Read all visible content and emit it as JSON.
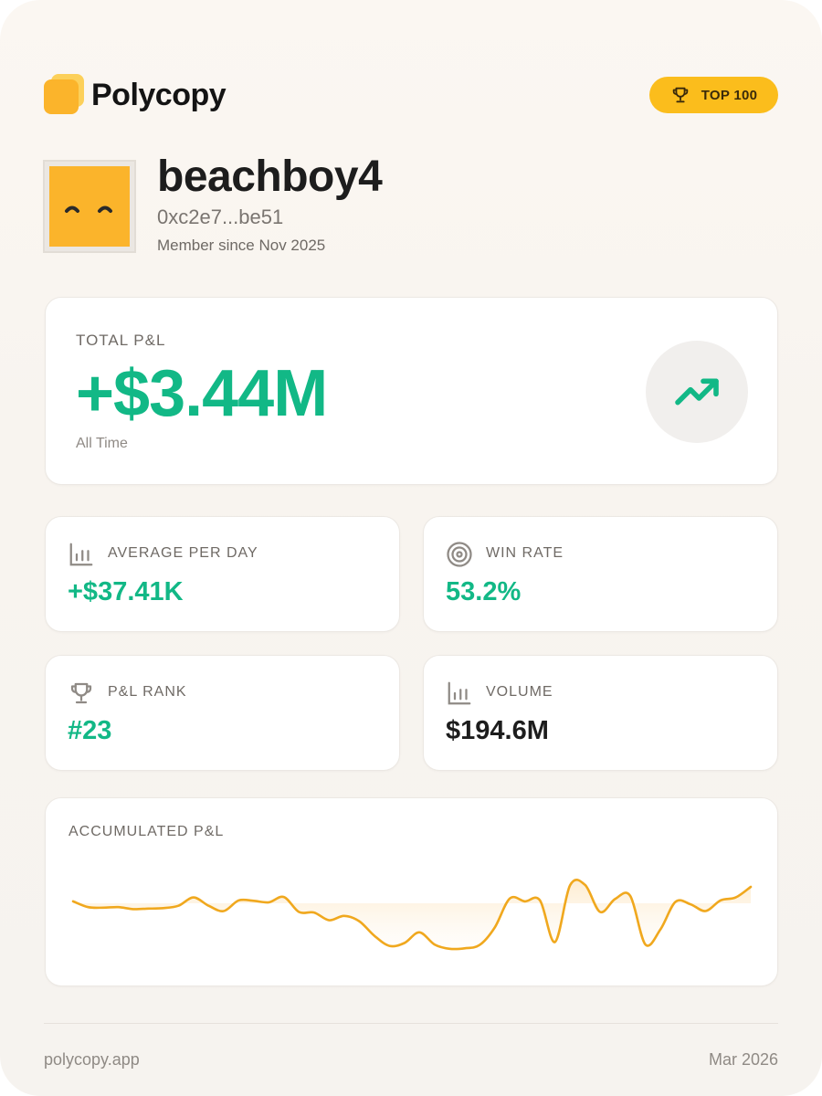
{
  "brand": {
    "name": "Polycopy"
  },
  "badge": {
    "label": "TOP 100",
    "color": "#fbbd1c"
  },
  "profile": {
    "username": "beachboy4",
    "wallet": "0xc2e7...be51",
    "member_since": "Member since Nov 2025"
  },
  "total_pnl": {
    "label": "TOTAL P&L",
    "value": "+$3.44M",
    "period": "All Time",
    "icon": "trending-up-icon",
    "color": "#12b886"
  },
  "stats": {
    "avg_per_day": {
      "label": "AVERAGE PER DAY",
      "value": "+$37.41K",
      "icon": "bar-chart-icon"
    },
    "win_rate": {
      "label": "WIN RATE",
      "value": "53.2%",
      "icon": "target-icon"
    },
    "pnl_rank": {
      "label": "P&L RANK",
      "value": "#23",
      "icon": "trophy-icon"
    },
    "volume": {
      "label": "VOLUME",
      "value": "$194.6M",
      "icon": "bar-chart-icon"
    }
  },
  "chart": {
    "label": "ACCUMULATED P&L",
    "line_color": "#f0a81e"
  },
  "chart_data": {
    "type": "area",
    "title": "ACCUMULATED P&L",
    "xlabel": "",
    "ylabel": "",
    "grid": false,
    "baseline": 0,
    "ylim": [
      -1,
      1
    ],
    "series": [
      {
        "name": "Accumulated P&L",
        "values": [
          0.04,
          -0.08,
          -0.09,
          -0.08,
          -0.12,
          -0.11,
          -0.1,
          -0.05,
          0.12,
          -0.05,
          -0.16,
          0.06,
          0.05,
          0.02,
          0.13,
          -0.18,
          -0.19,
          -0.35,
          -0.26,
          -0.37,
          -0.67,
          -0.88,
          -0.82,
          -0.6,
          -0.85,
          -0.94,
          -0.93,
          -0.86,
          -0.5,
          0.1,
          0.04,
          0.06,
          -0.8,
          0.37,
          0.38,
          -0.18,
          0.09,
          0.15,
          -0.85,
          -0.54,
          0.03,
          -0.02,
          -0.16,
          0.06,
          0.12,
          0.34
        ]
      }
    ]
  },
  "footer": {
    "site": "polycopy.app",
    "date": "Mar 2026"
  }
}
